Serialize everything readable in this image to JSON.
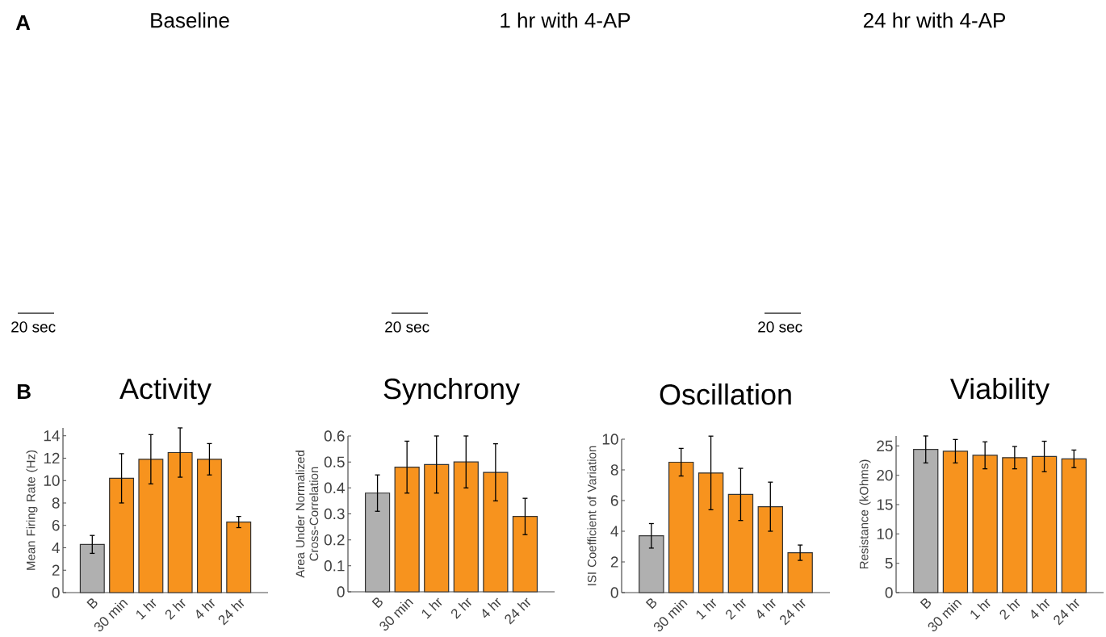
{
  "chart_data": [
    {
      "type": "other",
      "title": "Baseline",
      "annotations": [
        "A",
        "20 sec"
      ]
    },
    {
      "type": "other",
      "title": "1 hr with 4-AP",
      "annotations": [
        "20 sec"
      ]
    },
    {
      "type": "other",
      "title": "24 hr with 4-AP",
      "annotations": [
        "20 sec"
      ]
    },
    {
      "type": "bar",
      "title": "Activity",
      "annotations": [
        "B"
      ],
      "ylabel": "Mean Firing Rate (Hz)",
      "categories": [
        "B",
        "30 min",
        "1 hr",
        "2 hr",
        "4 hr",
        "24 hr"
      ],
      "values": [
        4.3,
        10.2,
        11.9,
        12.5,
        11.9,
        6.3
      ],
      "errors": [
        0.8,
        2.2,
        2.2,
        2.2,
        1.4,
        0.5
      ],
      "colors": [
        "#b0b0b0",
        "#f7931e",
        "#f7931e",
        "#f7931e",
        "#f7931e",
        "#f7931e"
      ],
      "ylim": [
        0,
        14.7
      ],
      "yticks": [
        0,
        2,
        4,
        6,
        8,
        10,
        12,
        14
      ]
    },
    {
      "type": "bar",
      "title": "Synchrony",
      "ylabel": "Area Under Normalized Cross-Correlation",
      "categories": [
        "B",
        "30 min",
        "1 hr",
        "2 hr",
        "4 hr",
        "24 hr"
      ],
      "values": [
        0.38,
        0.48,
        0.49,
        0.5,
        0.46,
        0.29
      ],
      "errors": [
        0.07,
        0.1,
        0.11,
        0.1,
        0.11,
        0.07
      ],
      "colors": [
        "#b0b0b0",
        "#f7931e",
        "#f7931e",
        "#f7931e",
        "#f7931e",
        "#f7931e"
      ],
      "ylim": [
        0,
        0.6
      ],
      "yticks": [
        0,
        0.1,
        0.2,
        0.3,
        0.4,
        0.5,
        0.6
      ]
    },
    {
      "type": "bar",
      "title": "Oscillation",
      "ylabel": "ISI Coefficient of Variation",
      "categories": [
        "B",
        "30 min",
        "1 hr",
        "2 hr",
        "4 hr",
        "24 hr"
      ],
      "values": [
        3.7,
        8.5,
        7.8,
        6.4,
        5.6,
        2.6
      ],
      "errors": [
        0.8,
        0.9,
        2.4,
        1.7,
        1.6,
        0.5
      ],
      "colors": [
        "#b0b0b0",
        "#f7931e",
        "#f7931e",
        "#f7931e",
        "#f7931e",
        "#f7931e"
      ],
      "ylim": [
        0,
        10
      ],
      "yticks": [
        0,
        2,
        4,
        6,
        8,
        10
      ]
    },
    {
      "type": "bar",
      "title": "Viability",
      "ylabel": "Resistance (kOhms)",
      "categories": [
        "B",
        "30 min",
        "1 hr",
        "2 hr",
        "4 hr",
        "24 hr"
      ],
      "values": [
        24.4,
        24.1,
        23.4,
        23,
        23.2,
        22.8
      ],
      "errors": [
        2.3,
        2,
        2.3,
        1.9,
        2.6,
        1.5
      ],
      "colors": [
        "#b0b0b0",
        "#f7931e",
        "#f7931e",
        "#f7931e",
        "#f7931e",
        "#f7931e"
      ],
      "ylim": [
        0,
        26.7
      ],
      "yticks": [
        0,
        5,
        10,
        15,
        20,
        25
      ]
    }
  ]
}
